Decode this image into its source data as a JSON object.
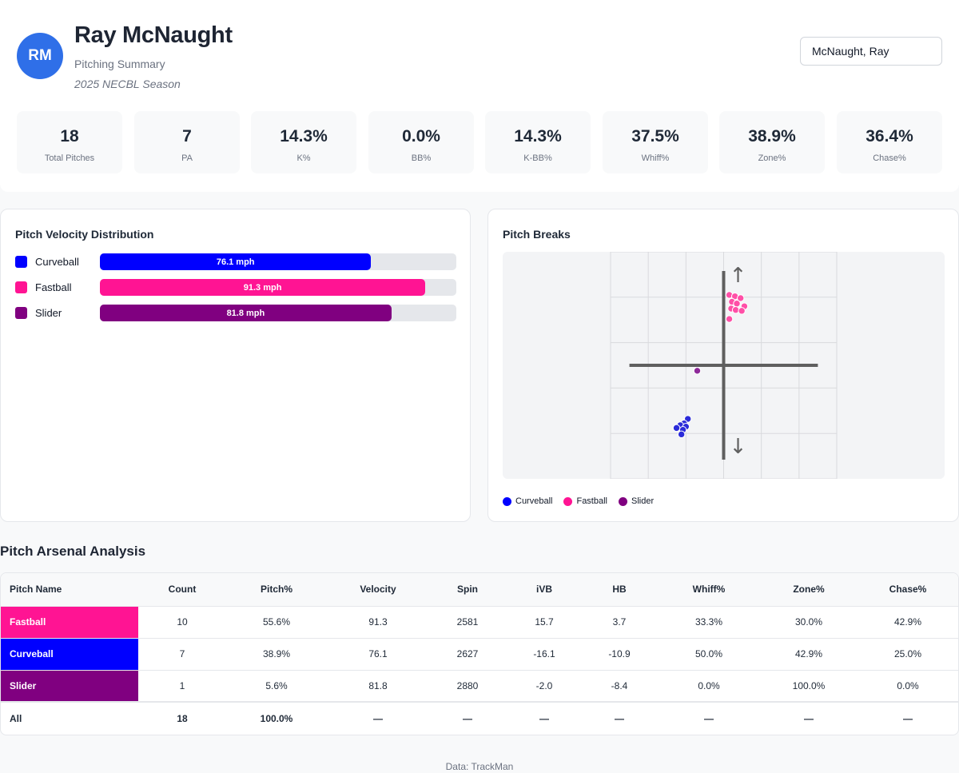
{
  "player": {
    "initials": "RM",
    "name": "Ray McNaught",
    "subtitle": "Pitching Summary",
    "season": "2025 NECBL Season",
    "selected": "McNaught, Ray"
  },
  "stats": [
    {
      "value": "18",
      "label": "Total Pitches"
    },
    {
      "value": "7",
      "label": "PA"
    },
    {
      "value": "14.3%",
      "label": "K%"
    },
    {
      "value": "0.0%",
      "label": "BB%"
    },
    {
      "value": "14.3%",
      "label": "K-BB%"
    },
    {
      "value": "37.5%",
      "label": "Whiff%"
    },
    {
      "value": "38.9%",
      "label": "Zone%"
    },
    {
      "value": "36.4%",
      "label": "Chase%"
    }
  ],
  "velocity": {
    "title": "Pitch Velocity Distribution",
    "max": 100,
    "items": [
      {
        "name": "Curveball",
        "value": 76.1,
        "label": "76.1 mph",
        "color": "#0000ff"
      },
      {
        "name": "Fastball",
        "value": 91.3,
        "label": "91.3 mph",
        "color": "#ff1493"
      },
      {
        "name": "Slider",
        "value": 81.8,
        "label": "81.8 mph",
        "color": "#800080"
      }
    ]
  },
  "breaks": {
    "title": "Pitch Breaks",
    "arrow_up": "↑",
    "arrow_down": "↓",
    "legend": [
      {
        "name": "Curveball",
        "color": "#0000ff"
      },
      {
        "name": "Fastball",
        "color": "#ff1493"
      },
      {
        "name": "Slider",
        "color": "#800080"
      }
    ]
  },
  "chart_data": {
    "type": "scatter",
    "title": "Pitch Breaks",
    "xlabel": "",
    "ylabel": "",
    "xlim": [
      -30,
      30
    ],
    "ylim": [
      -25,
      25
    ],
    "grid": true,
    "legend_placement": "bottom-left",
    "series": [
      {
        "name": "Curveball",
        "color": "#2b2bd9",
        "points": [
          [
            -9.5,
            -11.8
          ],
          [
            -10.5,
            -12.8
          ],
          [
            -11.5,
            -13.2
          ],
          [
            -10.0,
            -13.5
          ],
          [
            -10.8,
            -14.2
          ],
          [
            -11.2,
            -15.2
          ],
          [
            -12.5,
            -13.8
          ]
        ]
      },
      {
        "name": "Fastball",
        "color": "#ff4fa7",
        "points": [
          [
            1.5,
            15.5
          ],
          [
            3.0,
            15.2
          ],
          [
            4.5,
            14.8
          ],
          [
            2.2,
            14.0
          ],
          [
            3.5,
            13.6
          ],
          [
            5.5,
            13.0
          ],
          [
            2.0,
            12.5
          ],
          [
            3.2,
            12.2
          ],
          [
            4.8,
            12.0
          ],
          [
            1.5,
            10.2
          ]
        ]
      },
      {
        "name": "Slider",
        "color": "#8e2a9a",
        "points": [
          [
            -7.0,
            -1.2
          ]
        ]
      }
    ]
  },
  "arsenal": {
    "title": "Pitch Arsenal Analysis",
    "columns": [
      "Pitch Name",
      "Count",
      "Pitch%",
      "Velocity",
      "Spin",
      "iVB",
      "HB",
      "Whiff%",
      "Zone%",
      "Chase%"
    ],
    "rows": [
      {
        "pitch": "Fastball",
        "color": "#ff1493",
        "cells": [
          "10",
          "55.6%",
          "91.3",
          "2581",
          "15.7",
          "3.7",
          "33.3%",
          "30.0%",
          "42.9%"
        ]
      },
      {
        "pitch": "Curveball",
        "color": "#0000ff",
        "cells": [
          "7",
          "38.9%",
          "76.1",
          "2627",
          "-16.1",
          "-10.9",
          "50.0%",
          "42.9%",
          "25.0%"
        ]
      },
      {
        "pitch": "Slider",
        "color": "#800080",
        "cells": [
          "1",
          "5.6%",
          "81.8",
          "2880",
          "-2.0",
          "-8.4",
          "0.0%",
          "100.0%",
          "0.0%"
        ]
      }
    ],
    "total": {
      "pitch": "All",
      "cells": [
        "18",
        "100.0%",
        "—",
        "—",
        "—",
        "—",
        "—",
        "—",
        "—"
      ]
    }
  },
  "footer": "Data: TrackMan"
}
